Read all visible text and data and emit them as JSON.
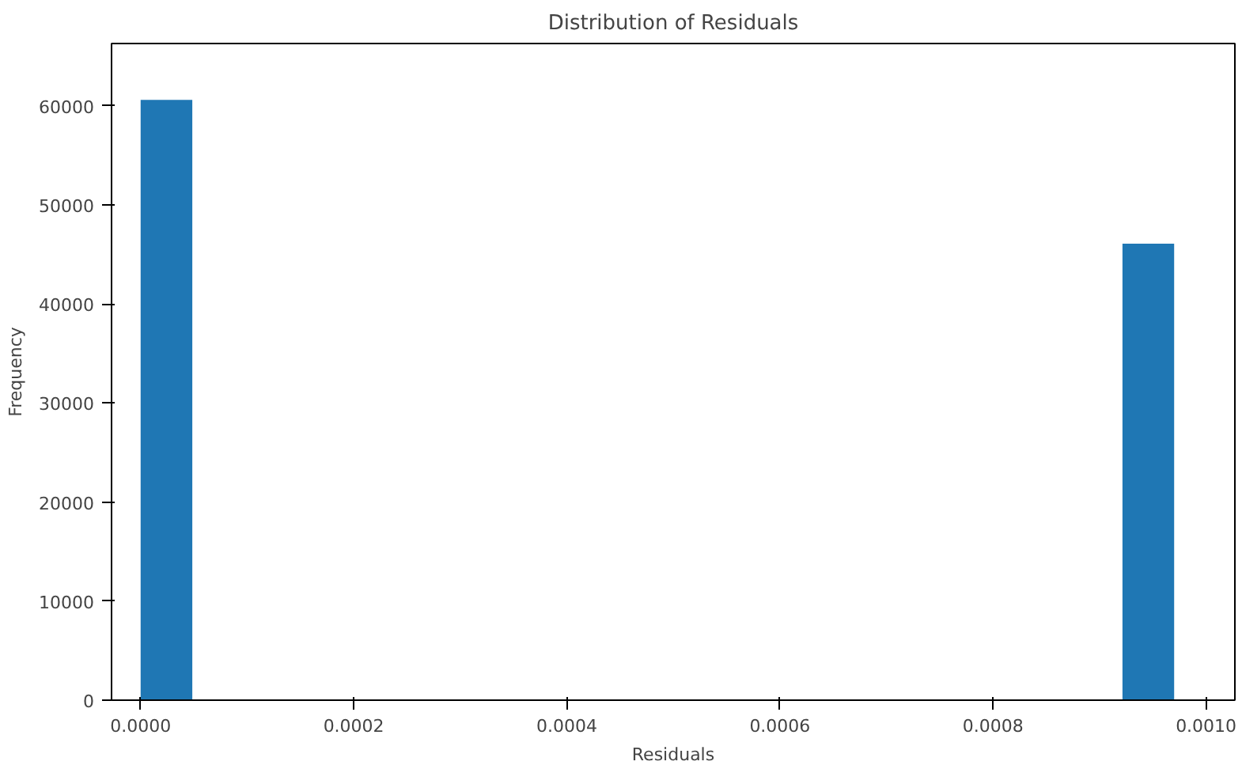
{
  "chart_data": {
    "type": "histogram",
    "title": "Distribution of Residuals",
    "xlabel": "Residuals",
    "ylabel": "Frequency",
    "bins": [
      0,
      4.85e-05,
      9.7e-05,
      0.0001455,
      0.000194,
      0.0002425,
      0.000291,
      0.0003395,
      0.000388,
      0.0004365,
      0.000485,
      0.0005335,
      0.000582,
      0.0006305,
      0.000679,
      0.0007275,
      0.000776,
      0.0008245,
      0.000873,
      0.0009215,
      0.00097
    ],
    "values": [
      60600,
      0,
      0,
      0,
      0,
      0,
      0,
      0,
      0,
      0,
      0,
      0,
      0,
      0,
      0,
      0,
      0,
      0,
      0,
      46100
    ],
    "color": "#1f77b4",
    "xlim": [
      -2.73e-05,
      0.001027
    ],
    "ylim": [
      0,
      66300
    ],
    "xticks": [
      {
        "value": 0,
        "label": "0.0000"
      },
      {
        "value": 0.0002,
        "label": "0.0002"
      },
      {
        "value": 0.0004,
        "label": "0.0004"
      },
      {
        "value": 0.0006,
        "label": "0.0006"
      },
      {
        "value": 0.0008,
        "label": "0.0008"
      },
      {
        "value": 0.001,
        "label": "0.0010"
      }
    ],
    "yticks": [
      0,
      10000,
      20000,
      30000,
      40000,
      50000,
      60000
    ],
    "grid": false
  }
}
